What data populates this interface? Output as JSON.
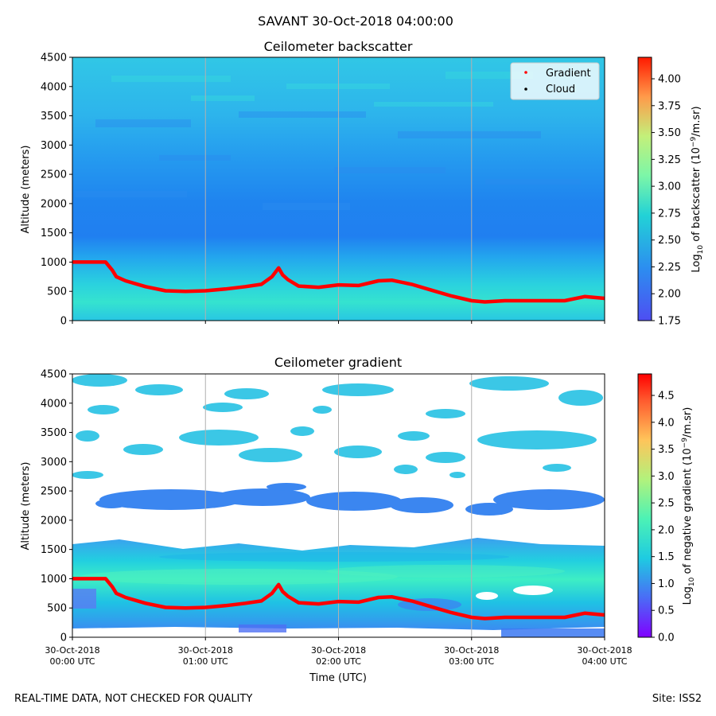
{
  "figure": {
    "suptitle": "SAVANT 30-Oct-2018 04:00:00",
    "footer_left": "REAL-TIME DATA, NOT CHECKED FOR QUALITY",
    "footer_right": "Site: ISS2"
  },
  "chart_data": [
    {
      "type": "heatmap",
      "title": "Ceilometer backscatter",
      "ylabel": "Altitude (meters)",
      "xlabel": "",
      "ylim": [
        0,
        4500
      ],
      "yticks": [
        0,
        500,
        1000,
        1500,
        2000,
        2500,
        3000,
        3500,
        4000,
        4500
      ],
      "xlim_hours": [
        0,
        4
      ],
      "colorbar": {
        "label_prefix": "Log",
        "label_sub": "10",
        "label_mid": " of backscatter (10",
        "label_sup": "−9",
        "label_suffix": "/m.sr)",
        "range": [
          1.75,
          4.2
        ],
        "ticks": [
          "1.75",
          "2.00",
          "2.25",
          "2.50",
          "2.75",
          "3.00",
          "3.25",
          "3.50",
          "3.75",
          "4.00"
        ],
        "colormap": "rainbow"
      },
      "legend": {
        "location": "top-right",
        "entries": [
          {
            "label": "Gradient",
            "color": "#ff0000"
          },
          {
            "label": "Cloud",
            "color": "#000000"
          }
        ]
      },
      "field_description": "Log10 backscatter about 2.4-2.6 in lowest 1500 m, about 2.2-2.3 from 1500-2500 m, about 2.4-2.5 above 3000 m",
      "gradient_series": {
        "name": "Gradient",
        "color": "#ff0000",
        "x_hours": [
          0.0,
          0.25,
          0.3,
          0.33,
          0.4,
          0.55,
          0.7,
          0.85,
          1.0,
          1.15,
          1.3,
          1.42,
          1.5,
          1.55,
          1.58,
          1.62,
          1.7,
          1.85,
          2.0,
          2.15,
          2.3,
          2.4,
          2.55,
          2.7,
          2.85,
          3.0,
          3.1,
          3.25,
          3.4,
          3.55,
          3.7,
          3.85,
          4.0
        ],
        "y_meters": [
          1000,
          1000,
          860,
          750,
          680,
          580,
          510,
          500,
          510,
          540,
          580,
          620,
          750,
          900,
          780,
          700,
          590,
          570,
          610,
          600,
          680,
          690,
          620,
          520,
          420,
          340,
          320,
          340,
          340,
          340,
          340,
          410,
          380
        ]
      }
    },
    {
      "type": "heatmap",
      "title": "Ceilometer gradient",
      "ylabel": "Altitude (meters)",
      "xlabel": "Time (UTC)",
      "ylim": [
        0,
        4500
      ],
      "yticks": [
        0,
        500,
        1000,
        1500,
        2000,
        2500,
        3000,
        3500,
        4000,
        4500
      ],
      "xticks": [
        {
          "hours": 0,
          "line1": "30-Oct-2018",
          "line2": "00:00 UTC"
        },
        {
          "hours": 1,
          "line1": "30-Oct-2018",
          "line2": "01:00 UTC"
        },
        {
          "hours": 2,
          "line1": "30-Oct-2018",
          "line2": "02:00 UTC"
        },
        {
          "hours": 3,
          "line1": "30-Oct-2018",
          "line2": "03:00 UTC"
        },
        {
          "hours": 4,
          "line1": "30-Oct-2018",
          "line2": "04:00 UTC"
        }
      ],
      "colorbar": {
        "label_prefix": "Log",
        "label_sub": "10",
        "label_mid": " of negative gradient (10",
        "label_sup": "−9",
        "label_suffix": "/m.sr)",
        "range": [
          0.0,
          4.9
        ],
        "ticks": [
          "0.0",
          "0.5",
          "1.0",
          "1.5",
          "2.0",
          "2.5",
          "3.0",
          "3.5",
          "4.0",
          "4.5"
        ],
        "colormap": "rainbow"
      },
      "field_description": "Continuous layer about 1.0-2.0 from 150 to 1650 m; patchy layers about 0.8-2.0 between 1800 and 4500 m; white where no negative gradient",
      "gradient_series": {
        "name": "Gradient",
        "color": "#ff0000",
        "x_hours": [
          0.0,
          0.25,
          0.3,
          0.33,
          0.4,
          0.55,
          0.7,
          0.85,
          1.0,
          1.15,
          1.3,
          1.42,
          1.5,
          1.55,
          1.58,
          1.62,
          1.7,
          1.85,
          2.0,
          2.15,
          2.3,
          2.4,
          2.55,
          2.7,
          2.85,
          3.0,
          3.1,
          3.25,
          3.4,
          3.55,
          3.7,
          3.85,
          4.0
        ],
        "y_meters": [
          1000,
          1000,
          860,
          750,
          680,
          580,
          510,
          500,
          510,
          540,
          580,
          620,
          750,
          900,
          780,
          700,
          590,
          570,
          610,
          600,
          680,
          690,
          620,
          520,
          420,
          340,
          320,
          340,
          340,
          340,
          340,
          410,
          380
        ]
      }
    }
  ]
}
